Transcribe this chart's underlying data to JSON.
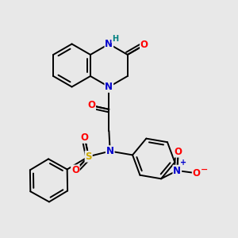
{
  "bg_color": "#e8e8e8",
  "atom_colors": {
    "C": "#000000",
    "N": "#0000cc",
    "O": "#ff0000",
    "S": "#ccaa00",
    "H": "#008080"
  },
  "bond_color": "#000000",
  "bond_width": 1.4,
  "xlim": [
    -5.5,
    5.5
  ],
  "ylim": [
    -5.5,
    5.5
  ]
}
